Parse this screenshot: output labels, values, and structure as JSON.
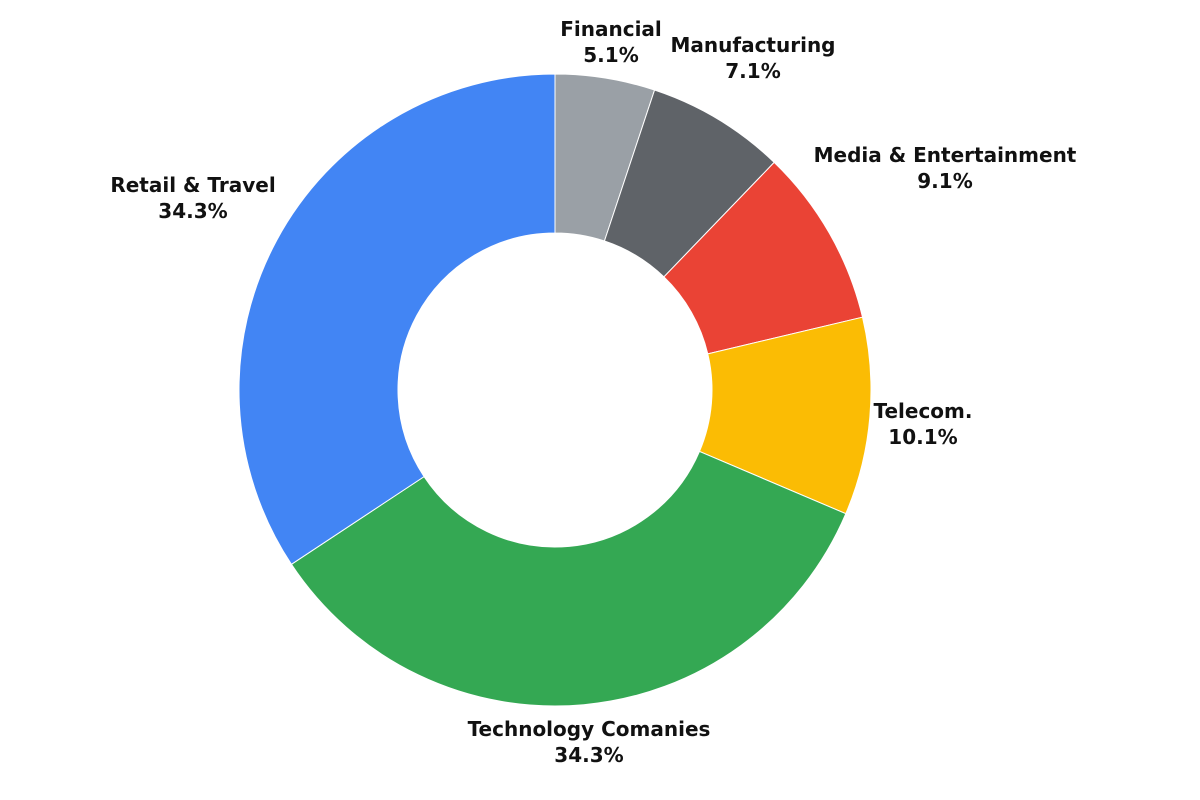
{
  "chart_data": {
    "type": "pie",
    "donut": true,
    "categories": [
      "Financial",
      "Manufacturing",
      "Media & Entertainment",
      "Telecom.",
      "Technology Comanies",
      "Retail & Travel"
    ],
    "values": [
      5.1,
      7.1,
      9.1,
      10.1,
      34.3,
      34.3
    ],
    "value_labels": [
      "5.1%",
      "7.1%",
      "9.1%",
      "10.1%",
      "34.3%",
      "34.3%"
    ],
    "colors": [
      "#9aa0a6",
      "#5f6368",
      "#ea4335",
      "#fbbc04",
      "#34a853",
      "#4285f4"
    ],
    "unit": "%",
    "legend": "none",
    "labels_position": "outside"
  }
}
